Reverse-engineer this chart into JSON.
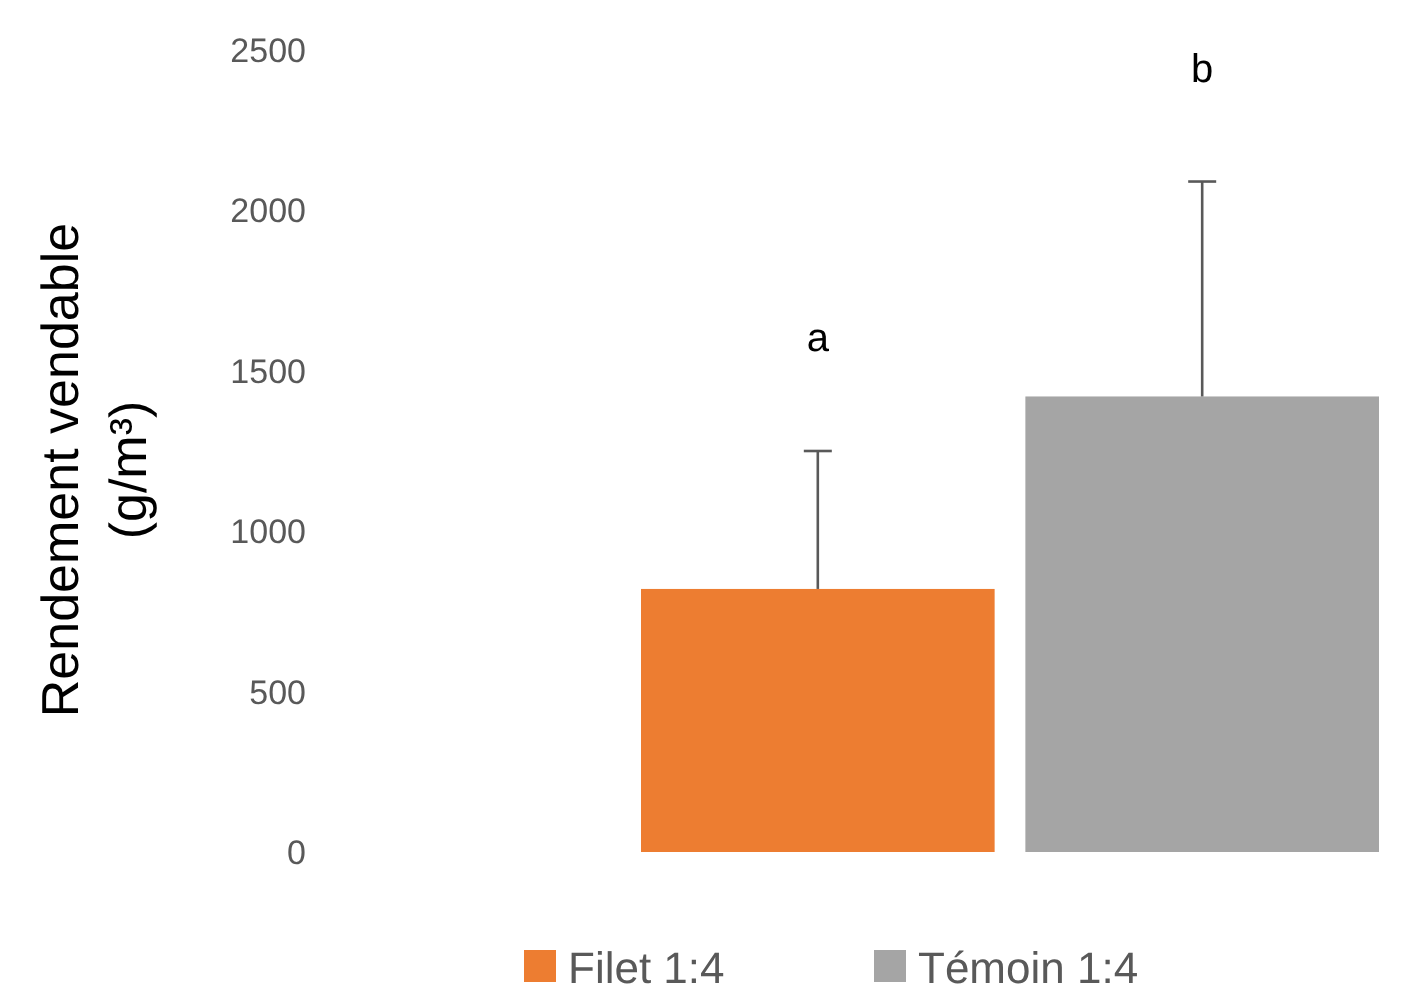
{
  "chart_data": {
    "type": "bar",
    "ylabel": "Rendement vendable\n(g/m³)",
    "categories": [
      null
    ],
    "series": [
      {
        "name": "Filet 1:4",
        "color": "#ed7d31",
        "values": [
          820
        ],
        "errors": [
          [
            820,
            1250
          ]
        ]
      },
      {
        "name": "Témoin 1:4",
        "color": "#a5a5a5",
        "values": [
          1420
        ],
        "errors": [
          [
            1420,
            2090
          ]
        ]
      }
    ],
    "ylim": [
      0,
      2500
    ],
    "yticks": [
      0,
      500,
      1000,
      1500,
      2000,
      2500
    ],
    "grid": false,
    "legend": "bottom",
    "annotations": [
      "a",
      "b"
    ]
  }
}
